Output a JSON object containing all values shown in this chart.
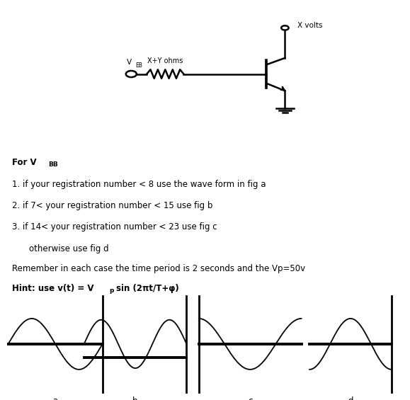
{
  "background_color": "#ffffff",
  "fig_width": 5.79,
  "fig_height": 5.65,
  "circuit": {
    "veb_label": "VEB",
    "resistor_label": "X+Y ohms",
    "voltage_label": "X volts"
  },
  "text_lines": [
    "For VBB",
    "1. if your registration number < 8 use the wave form in fig a",
    "2. if 7< your registration number < 15 use fig b",
    "3. if 14< your registration number < 23 use fig c",
    "    otherwise use fig d",
    "Remember in each case the time period is 2 seconds and the Vp=50v"
  ],
  "hint_bold": "Hint: use v(t) = V",
  "hint_sub": "p",
  "hint_rest": "sin (2πt/T+φ)",
  "waveform_labels": [
    "a",
    "b",
    "c",
    "d"
  ]
}
